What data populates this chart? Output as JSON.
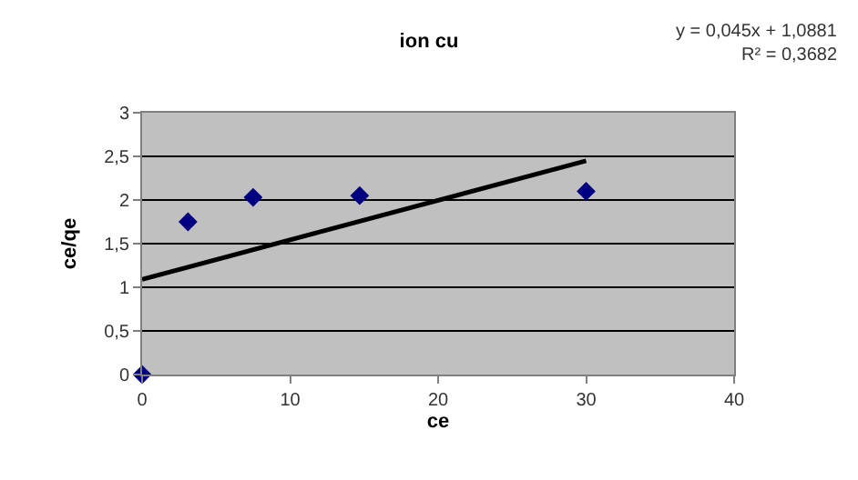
{
  "chart_data": {
    "type": "scatter",
    "title": "ion cu",
    "xlabel": "ce",
    "ylabel": "ce/qe",
    "annotations": [
      "y = 0,045x + 1,0881",
      "R² = 0,3682"
    ],
    "x": [
      0,
      3.1,
      7.5,
      14.7,
      30
    ],
    "series": [
      {
        "color": "#000080",
        "values": [
          0,
          1.75,
          2.03,
          2.05,
          2.1
        ],
        "marker": "diamond"
      },
      {
        "type": "line",
        "color": "#000000",
        "x": [
          0,
          30
        ],
        "values": [
          1.09,
          2.45
        ]
      }
    ],
    "xlim": [
      0,
      40
    ],
    "xticks": [
      0,
      10,
      20,
      30,
      40
    ],
    "ylim": [
      0,
      3
    ],
    "yticks": [
      0,
      {
        "value": 0.5,
        "label": "0,5"
      },
      1,
      {
        "value": 1.5,
        "label": "1,5"
      },
      2,
      {
        "value": 2.5,
        "label": "2,5"
      },
      3
    ],
    "grid": "y"
  }
}
